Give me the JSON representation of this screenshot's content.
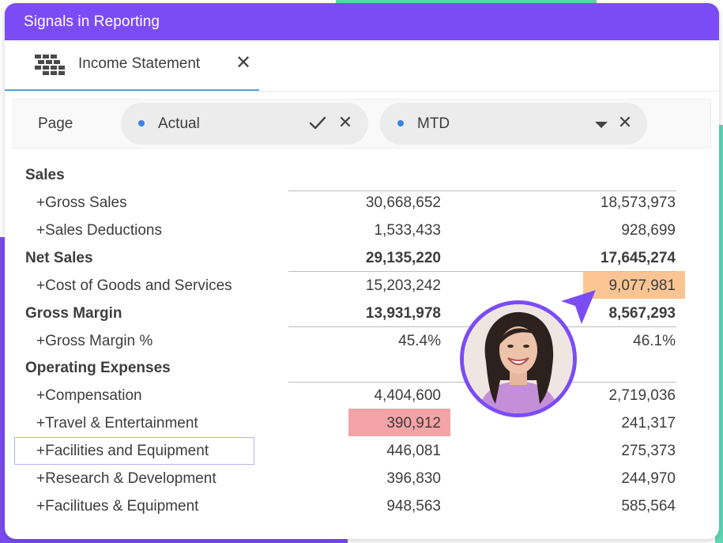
{
  "window": {
    "title": "Signals in Reporting"
  },
  "tab": {
    "label": "Income Statement",
    "close": "✕"
  },
  "filters": {
    "page_label": "Page",
    "chips": [
      {
        "label": "Actual",
        "clear": "✕"
      },
      {
        "label": "MTD",
        "clear": "✕"
      }
    ]
  },
  "rows": [
    {
      "label": "Sales",
      "v1": "",
      "v2": ""
    },
    {
      "label": "+Gross Sales",
      "v1": "30,668,652",
      "v2": "18,573,973"
    },
    {
      "label": "+Sales Deductions",
      "v1": "1,533,433",
      "v2": "928,699"
    },
    {
      "label": "Net Sales",
      "v1": "29,135,220",
      "v2": "17,645,274"
    },
    {
      "label": "+Cost of Goods and Services",
      "v1": "15,203,242",
      "v2": "9,077,981"
    },
    {
      "label": "Gross Margin",
      "v1": "13,931,978",
      "v2": "8,567,293"
    },
    {
      "label": "+Gross Margin %",
      "v1": "45.4%",
      "v2": "46.1%"
    },
    {
      "label": "Operating Expenses",
      "v1": "",
      "v2": ""
    },
    {
      "label": "+Compensation",
      "v1": "4,404,600",
      "v2": "2,719,036"
    },
    {
      "label": "+Travel & Entertainment",
      "v1": "390,912",
      "v2": "241,317"
    },
    {
      "label": "+Facilities and Equipment",
      "v1": "446,081",
      "v2": "275,373"
    },
    {
      "label": "+Research & Development",
      "v1": "396,830",
      "v2": "244,970"
    },
    {
      "label": "+Facilitues & Equipment",
      "v1": "948,563",
      "v2": "585,564"
    }
  ],
  "colors": {
    "accent": "#7b4cf6",
    "highlight_red": "#f4a3a6",
    "highlight_orange": "#fbc593",
    "tab_underline": "#4aa8d8"
  },
  "icons": {
    "tab": "table-grid-icon",
    "check": "check-icon",
    "caret": "caret-down-icon",
    "pointer": "cursor-pointer-icon"
  }
}
